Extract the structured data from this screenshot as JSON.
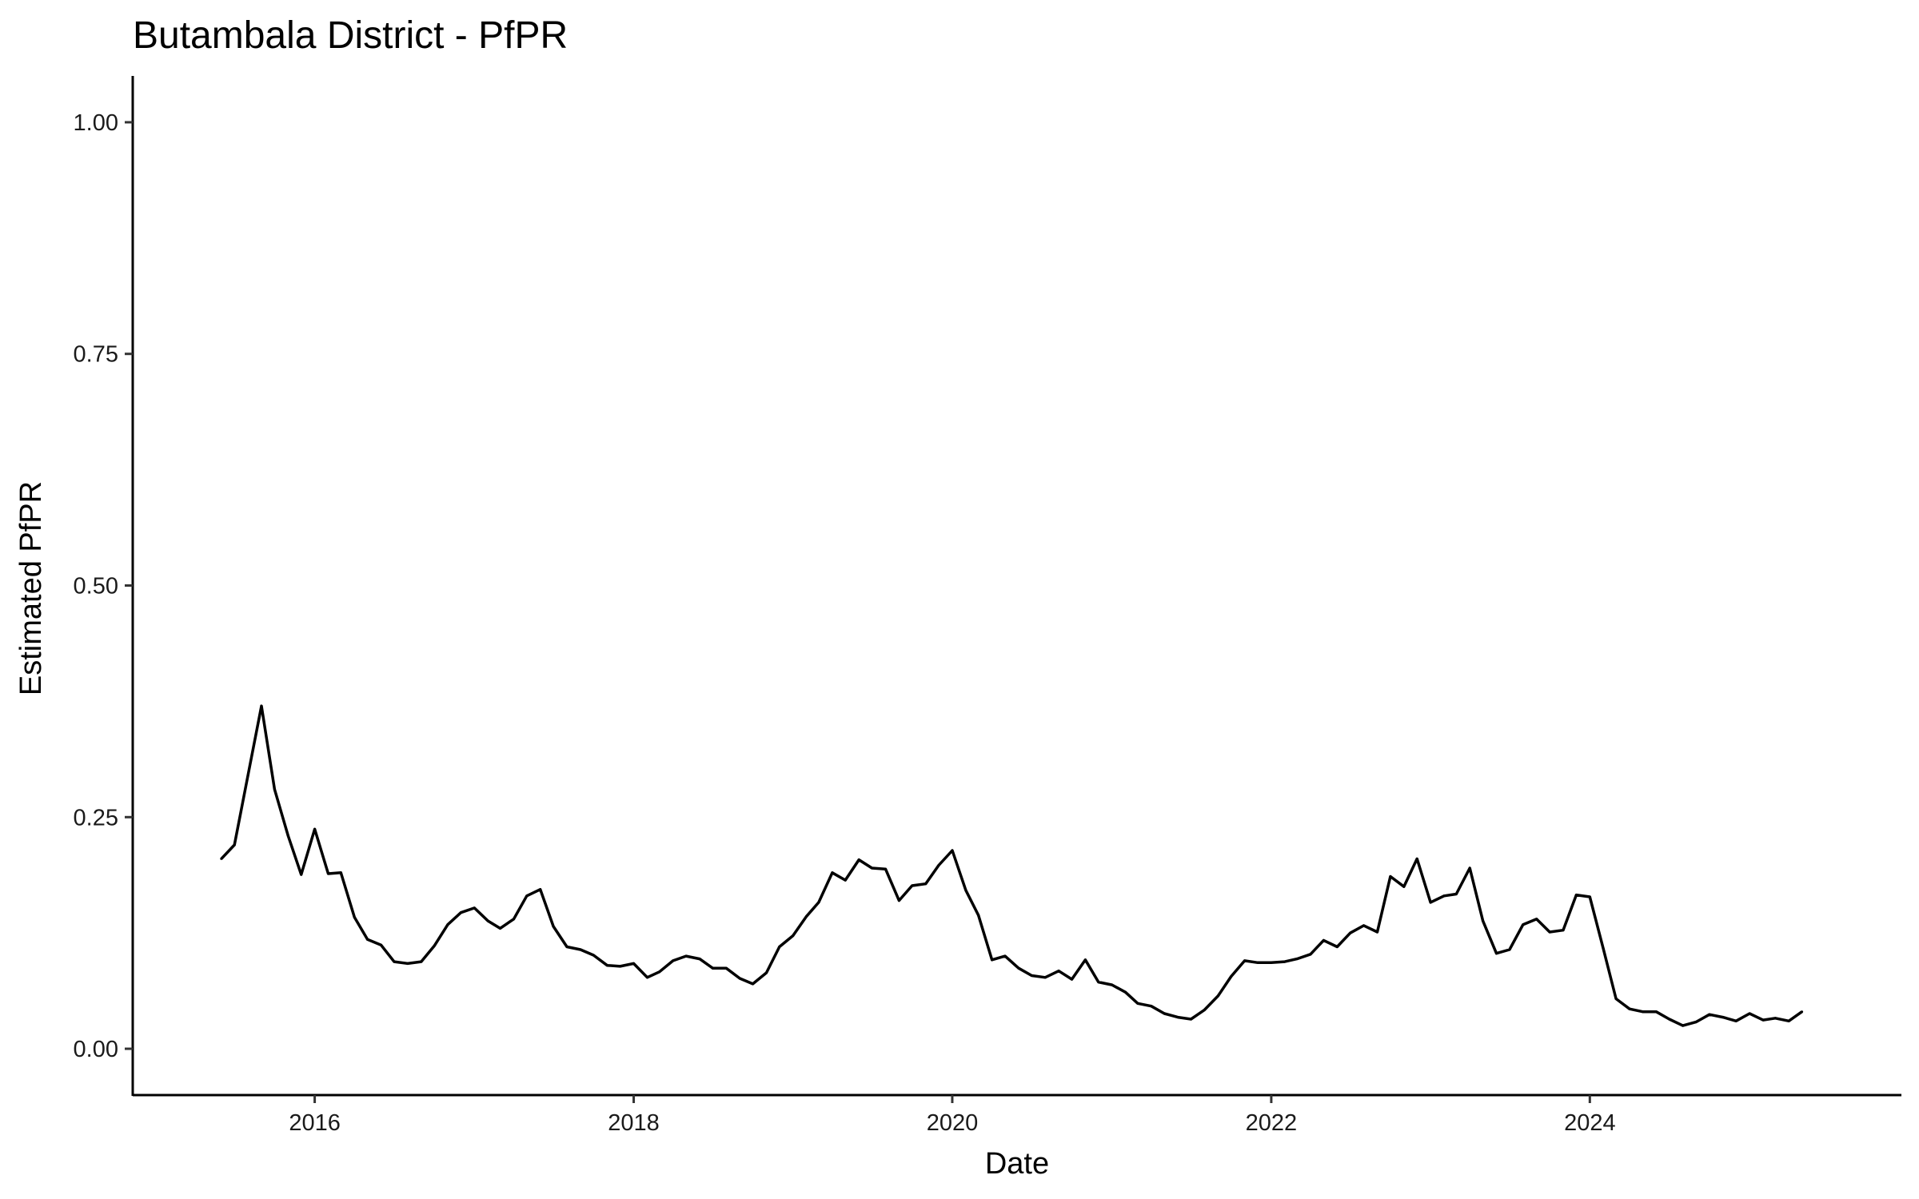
{
  "chart_data": {
    "type": "line",
    "title": "Butambala District - PfPR",
    "xlabel": "Date",
    "ylabel": "Estimated PfPR",
    "x_ticks": [
      "2016",
      "2018",
      "2020",
      "2022",
      "2024"
    ],
    "y_ticks": [
      "0.00",
      "0.25",
      "0.50",
      "0.75",
      "1.00"
    ],
    "xlim": [
      "2014-11-10",
      "2025-12-15"
    ],
    "ylim": [
      -0.05,
      1.05
    ],
    "grid": false,
    "legend": "none",
    "line_color": "#000000",
    "series": [
      {
        "x": [
          "2015-06",
          "2015-07",
          "2015-08",
          "2015-09",
          "2015-10",
          "2015-11",
          "2015-12",
          "2016-01",
          "2016-02",
          "2016-03",
          "2016-04",
          "2016-05",
          "2016-06",
          "2016-07",
          "2016-08",
          "2016-09",
          "2016-10",
          "2016-11",
          "2016-12",
          "2017-01",
          "2017-02",
          "2017-03",
          "2017-04",
          "2017-05",
          "2017-06",
          "2017-07",
          "2017-08",
          "2017-09",
          "2017-10",
          "2017-11",
          "2017-12",
          "2018-01",
          "2018-02",
          "2018-03",
          "2018-04",
          "2018-05",
          "2018-06",
          "2018-07",
          "2018-08",
          "2018-09",
          "2018-10",
          "2018-11",
          "2018-12",
          "2019-01",
          "2019-02",
          "2019-03",
          "2019-04",
          "2019-05",
          "2019-06",
          "2019-07",
          "2019-08",
          "2019-09",
          "2019-10",
          "2019-11",
          "2019-12",
          "2020-01",
          "2020-02",
          "2020-03",
          "2020-04",
          "2020-05",
          "2020-06",
          "2020-07",
          "2020-08",
          "2020-09",
          "2020-10",
          "2020-11",
          "2020-12",
          "2021-01",
          "2021-02",
          "2021-03",
          "2021-04",
          "2021-05",
          "2021-06",
          "2021-07",
          "2021-08",
          "2021-09",
          "2021-10",
          "2021-11",
          "2021-12",
          "2022-01",
          "2022-02",
          "2022-03",
          "2022-04",
          "2022-05",
          "2022-06",
          "2022-07",
          "2022-08",
          "2022-09",
          "2022-10",
          "2022-11",
          "2022-12",
          "2023-01",
          "2023-02",
          "2023-03",
          "2023-04",
          "2023-05",
          "2023-06",
          "2023-07",
          "2023-08",
          "2023-09",
          "2023-10",
          "2023-11",
          "2023-12",
          "2024-01",
          "2024-02",
          "2024-03",
          "2024-04",
          "2024-05",
          "2024-06",
          "2024-07",
          "2024-08",
          "2024-09",
          "2024-10",
          "2024-11",
          "2024-12",
          "2025-01",
          "2025-02",
          "2025-03",
          "2025-04",
          "2025-05"
        ],
        "values": [
          0.205,
          0.22,
          0.295,
          0.37,
          0.28,
          0.23,
          0.188,
          0.237,
          0.189,
          0.19,
          0.142,
          0.118,
          0.112,
          0.094,
          0.092,
          0.094,
          0.111,
          0.134,
          0.147,
          0.152,
          0.138,
          0.13,
          0.14,
          0.165,
          0.172,
          0.132,
          0.11,
          0.107,
          0.101,
          0.09,
          0.089,
          0.092,
          0.077,
          0.083,
          0.095,
          0.1,
          0.097,
          0.087,
          0.087,
          0.076,
          0.07,
          0.082,
          0.11,
          0.122,
          0.143,
          0.158,
          0.19,
          0.182,
          0.204,
          0.195,
          0.194,
          0.16,
          0.176,
          0.178,
          0.198,
          0.214,
          0.171,
          0.144,
          0.096,
          0.1,
          0.087,
          0.079,
          0.077,
          0.084,
          0.075,
          0.096,
          0.072,
          0.069,
          0.061,
          0.049,
          0.046,
          0.038,
          0.034,
          0.032,
          0.042,
          0.057,
          0.078,
          0.095,
          0.093,
          0.093,
          0.094,
          0.097,
          0.102,
          0.117,
          0.11,
          0.125,
          0.133,
          0.126,
          0.186,
          0.175,
          0.205,
          0.158,
          0.165,
          0.167,
          0.195,
          0.138,
          0.103,
          0.107,
          0.134,
          0.14,
          0.126,
          0.128,
          0.166,
          0.164,
          0.108,
          0.054,
          0.043,
          0.04,
          0.04,
          0.032,
          0.025,
          0.029,
          0.037,
          0.034,
          0.03,
          0.038,
          0.031,
          0.033,
          0.03,
          0.04
        ]
      }
    ]
  }
}
